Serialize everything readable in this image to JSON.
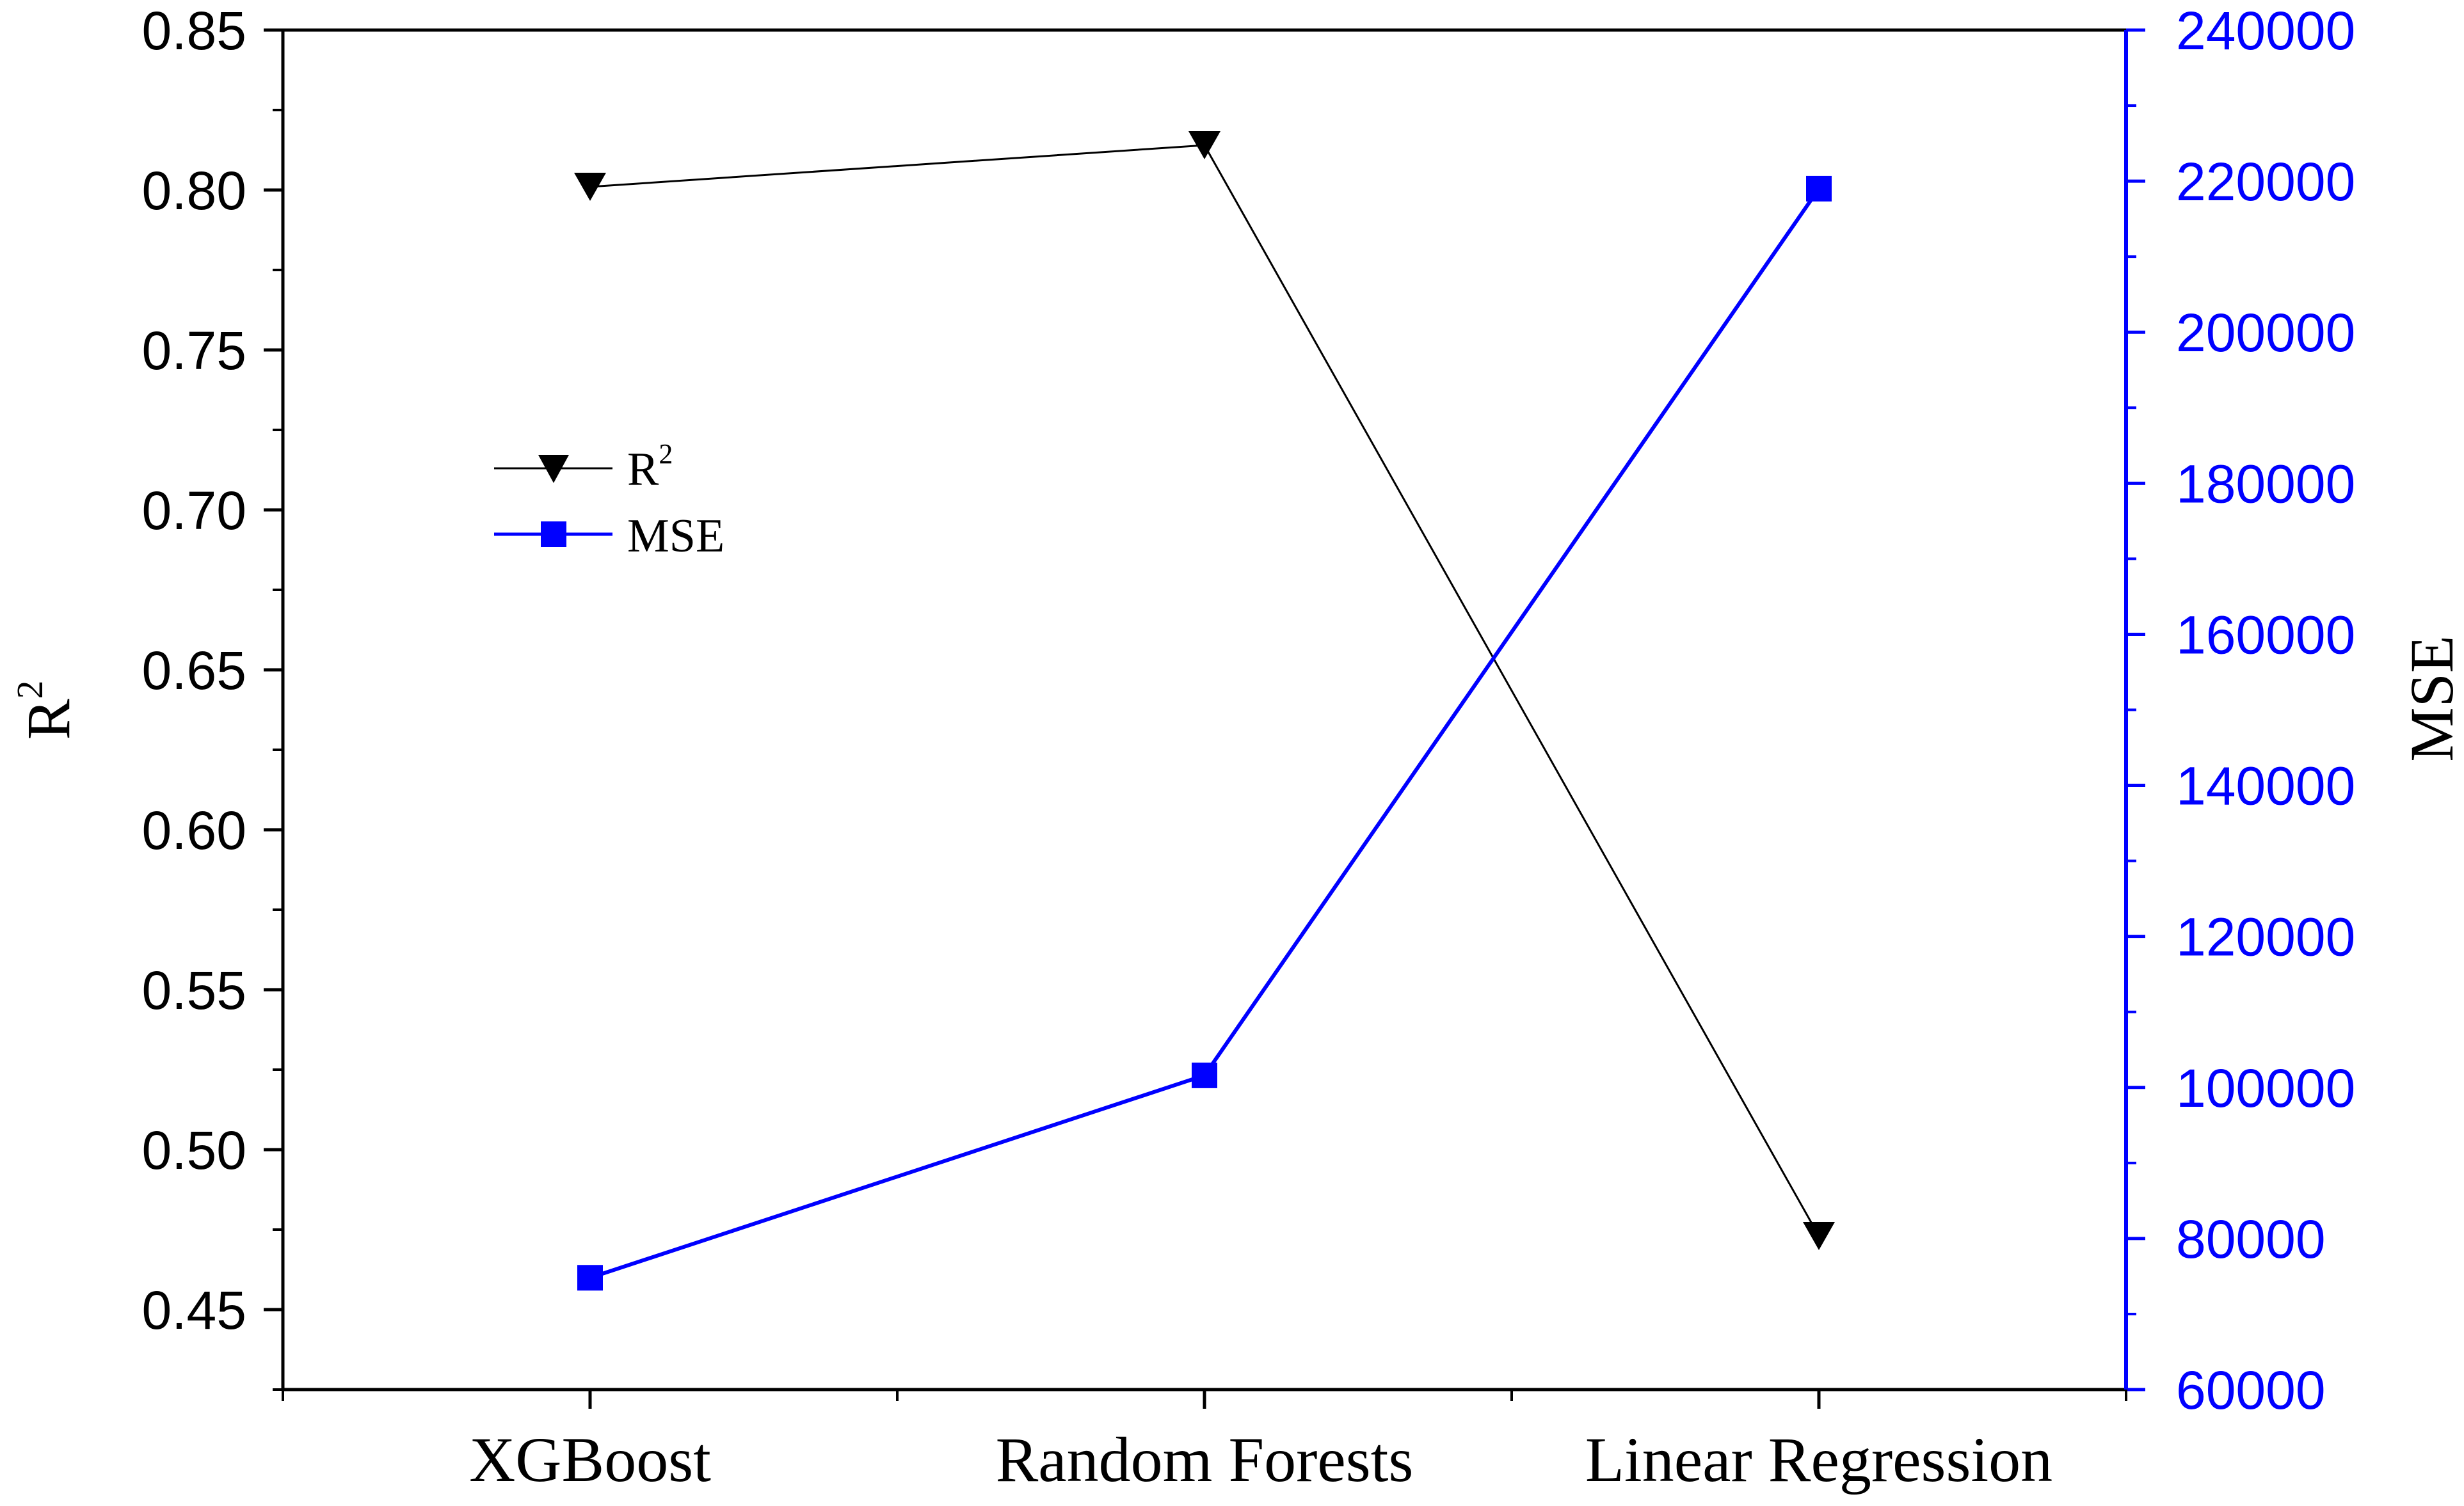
{
  "chart_data": {
    "type": "line",
    "categories": [
      "XGBoost",
      "Random Forests",
      "Linear Regression"
    ],
    "y_left": {
      "label": "R",
      "label_superscript": "2",
      "min": 0.425,
      "max": 0.85,
      "ticks": [
        "0.45",
        "0.50",
        "0.55",
        "0.60",
        "0.65",
        "0.70",
        "0.75",
        "0.80",
        "0.85"
      ],
      "color": "#000000"
    },
    "y_right": {
      "label": "MSE",
      "min": 60000,
      "max": 240000,
      "ticks": [
        "60000",
        "80000",
        "100000",
        "120000",
        "140000",
        "160000",
        "180000",
        "200000",
        "220000",
        "240000"
      ],
      "color": "#0000ff"
    },
    "series": [
      {
        "name": "R",
        "name_superscript": "2",
        "axis": "left",
        "marker": "triangle-down",
        "color": "#000000",
        "values": [
          0.801,
          0.814,
          0.473
        ]
      },
      {
        "name": "MSE",
        "axis": "right",
        "marker": "square",
        "color": "#0000ff",
        "values": [
          74800,
          101600,
          219000
        ]
      }
    ],
    "legend_position": "upper-left",
    "grid": false
  }
}
